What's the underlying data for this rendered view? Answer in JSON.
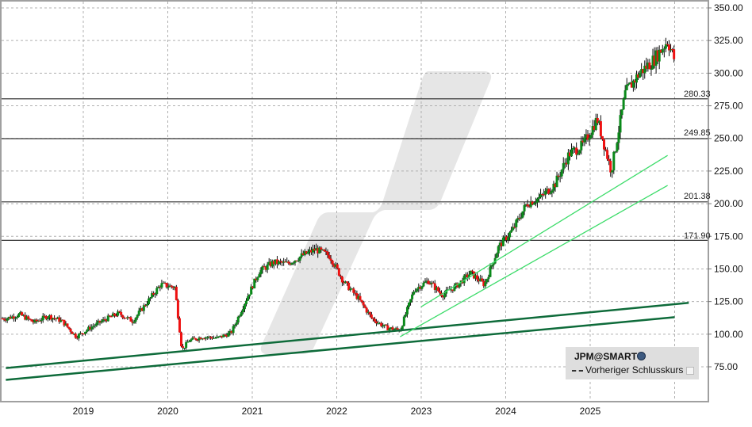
{
  "chart_data": {
    "type": "candlestick",
    "title": "",
    "symbol": "JPM@SMART",
    "xlabel": "",
    "ylabel": "",
    "x_ticks": [
      "2019",
      "2020",
      "2021",
      "2022",
      "2023",
      "2024",
      "2025"
    ],
    "y_ticks": [
      "75.00",
      "100.00",
      "125.00",
      "150.00",
      "175.00",
      "200.00",
      "225.00",
      "250.00",
      "275.00",
      "300.00",
      "325.00",
      "350.00"
    ],
    "ylim": [
      55,
      355
    ],
    "xlim": [
      "2018-02",
      "2026-03"
    ],
    "grid": true,
    "legend_position": "bottom-right",
    "legend": [
      {
        "label": "JPM@SMART",
        "type": "symbol"
      },
      {
        "label": "Vorheriger Schlusskurs",
        "type": "dashed-line"
      }
    ],
    "horizontal_levels": [
      {
        "value": 280.33,
        "label": "280.33"
      },
      {
        "value": 249.85,
        "label": "249.85"
      },
      {
        "value": 201.38,
        "label": "201.38"
      },
      {
        "value": 171.9,
        "label": "171.90"
      }
    ],
    "trendlines": [
      {
        "name": "long-term upper",
        "color": "#0e6b3a",
        "from": [
          "2018-02",
          74
        ],
        "to": [
          "2026-03",
          124
        ]
      },
      {
        "name": "long-term lower",
        "color": "#0e6b3a",
        "from": [
          "2018-02",
          65
        ],
        "to": [
          "2026-01",
          113
        ]
      },
      {
        "name": "short-term upper",
        "color": "#3ddc6a",
        "from": [
          "2023-01",
          121
        ],
        "to": [
          "2025-12",
          237
        ]
      },
      {
        "name": "short-term lower",
        "color": "#3ddc6a",
        "from": [
          "2022-10",
          98
        ],
        "to": [
          "2025-12",
          214
        ]
      }
    ],
    "series": [
      {
        "name": "JPM weekly close (approx)",
        "x": [
          "2018-02",
          "2018-04",
          "2018-06",
          "2018-08",
          "2018-10",
          "2018-12",
          "2019-02",
          "2019-04",
          "2019-06",
          "2019-08",
          "2019-10",
          "2019-12",
          "2020-02",
          "2020-03",
          "2020-04",
          "2020-06",
          "2020-08",
          "2020-10",
          "2020-12",
          "2021-02",
          "2021-04",
          "2021-06",
          "2021-08",
          "2021-10",
          "2021-12",
          "2022-02",
          "2022-04",
          "2022-06",
          "2022-08",
          "2022-10",
          "2022-12",
          "2023-02",
          "2023-04",
          "2023-06",
          "2023-08",
          "2023-10",
          "2023-12",
          "2024-02",
          "2024-04",
          "2024-06",
          "2024-08",
          "2024-10",
          "2024-12",
          "2025-02",
          "2025-04",
          "2025-06",
          "2025-08",
          "2025-10",
          "2025-12",
          "2026-01"
        ],
        "values": [
          112,
          115,
          109,
          114,
          110,
          98,
          105,
          111,
          116,
          110,
          124,
          138,
          136,
          88,
          95,
          98,
          97,
          101,
          125,
          148,
          155,
          154,
          160,
          165,
          160,
          140,
          128,
          112,
          105,
          103,
          134,
          141,
          130,
          137,
          147,
          138,
          167,
          180,
          200,
          205,
          215,
          238,
          245,
          265,
          225,
          285,
          300,
          310,
          325,
          310
        ]
      }
    ]
  },
  "axis": {
    "y_labels": [
      "350.00",
      "325.00",
      "300.00",
      "275.00",
      "250.00",
      "225.00",
      "200.00",
      "175.00",
      "150.00",
      "125.00",
      "100.00",
      "75.00"
    ],
    "x_labels": [
      "2019",
      "2020",
      "2021",
      "2022",
      "2023",
      "2024",
      "2025"
    ]
  },
  "levels": {
    "l1": "280.33",
    "l2": "249.85",
    "l3": "201.38",
    "l4": "171.90"
  },
  "legend": {
    "symbol": "JPM@SMART",
    "prev_close_label": "Vorheriger Schlusskurs"
  },
  "colors": {
    "up": "#0a8a1a",
    "down": "#ee1111",
    "grid": "#b0b0b0",
    "level_line": "#333333",
    "trend_dark": "#0e6b3a",
    "trend_light": "#3ddc6a",
    "watermark": "#e6e6e6"
  }
}
